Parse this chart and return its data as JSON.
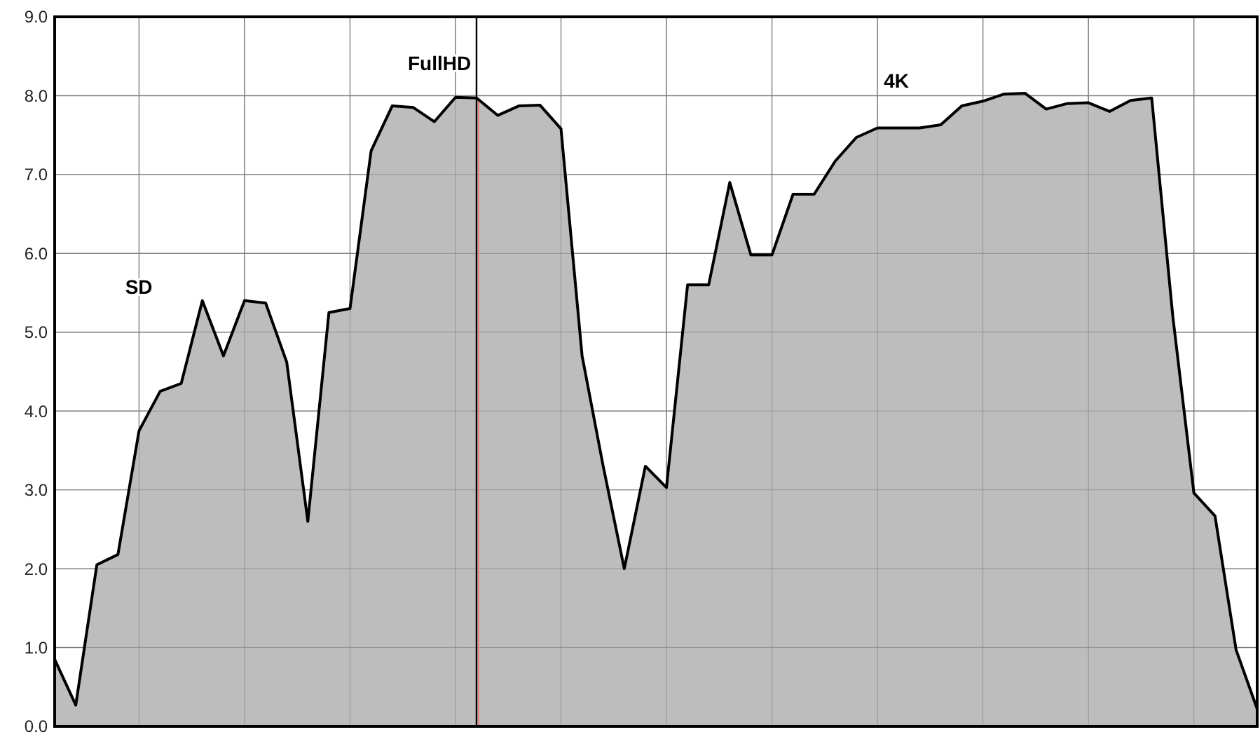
{
  "chart_data": {
    "type": "area",
    "categories": [
      null,
      null,
      null,
      null,
      null,
      null,
      null,
      null,
      null,
      null,
      null,
      null,
      null,
      null,
      null,
      null,
      null,
      null,
      null,
      null,
      null,
      null,
      null,
      null,
      null,
      null,
      null,
      null,
      null,
      null,
      null,
      null,
      null,
      null,
      null,
      null,
      null,
      null,
      null,
      null,
      null,
      null,
      null,
      null,
      null,
      null,
      null,
      null,
      null,
      null,
      null,
      null,
      null,
      null,
      null,
      null,
      null,
      null
    ],
    "series": [
      {
        "color": "#bdbdbd",
        "values": [
          0.85,
          0.27,
          2.05,
          2.18,
          3.75,
          4.25,
          4.35,
          5.4,
          4.7,
          5.4,
          5.37,
          4.62,
          2.6,
          5.25,
          5.3,
          7.3,
          7.87,
          7.85,
          7.67,
          7.98,
          7.97,
          7.75,
          7.87,
          7.88,
          7.58,
          4.7,
          3.3,
          2.0,
          3.3,
          3.03,
          5.6,
          5.6,
          6.9,
          5.98,
          5.98,
          6.75,
          6.75,
          7.17,
          7.47,
          7.59,
          7.59,
          7.59,
          7.63,
          7.87,
          7.93,
          8.02,
          8.03,
          7.83,
          7.9,
          7.91,
          7.8,
          7.94,
          7.97,
          5.2,
          2.96,
          2.67,
          0.97,
          0.22
        ]
      }
    ],
    "ylim": [
      0,
      9
    ],
    "yticks": [
      {
        "value": 0,
        "label": "0.0"
      },
      {
        "value": 1,
        "label": "1.0"
      },
      {
        "value": 2,
        "label": "2.0"
      },
      {
        "value": 3,
        "label": "3.0"
      },
      {
        "value": 4,
        "label": "4.0"
      },
      {
        "value": 5,
        "label": "5.0"
      },
      {
        "value": 6,
        "label": "6.0"
      },
      {
        "value": 7,
        "label": "7.0"
      },
      {
        "value": 8,
        "label": "8.0"
      },
      {
        "value": 9,
        "label": "9.0"
      }
    ],
    "grid": true,
    "annotations": [
      "SD",
      "FullHD",
      "4K"
    ]
  }
}
